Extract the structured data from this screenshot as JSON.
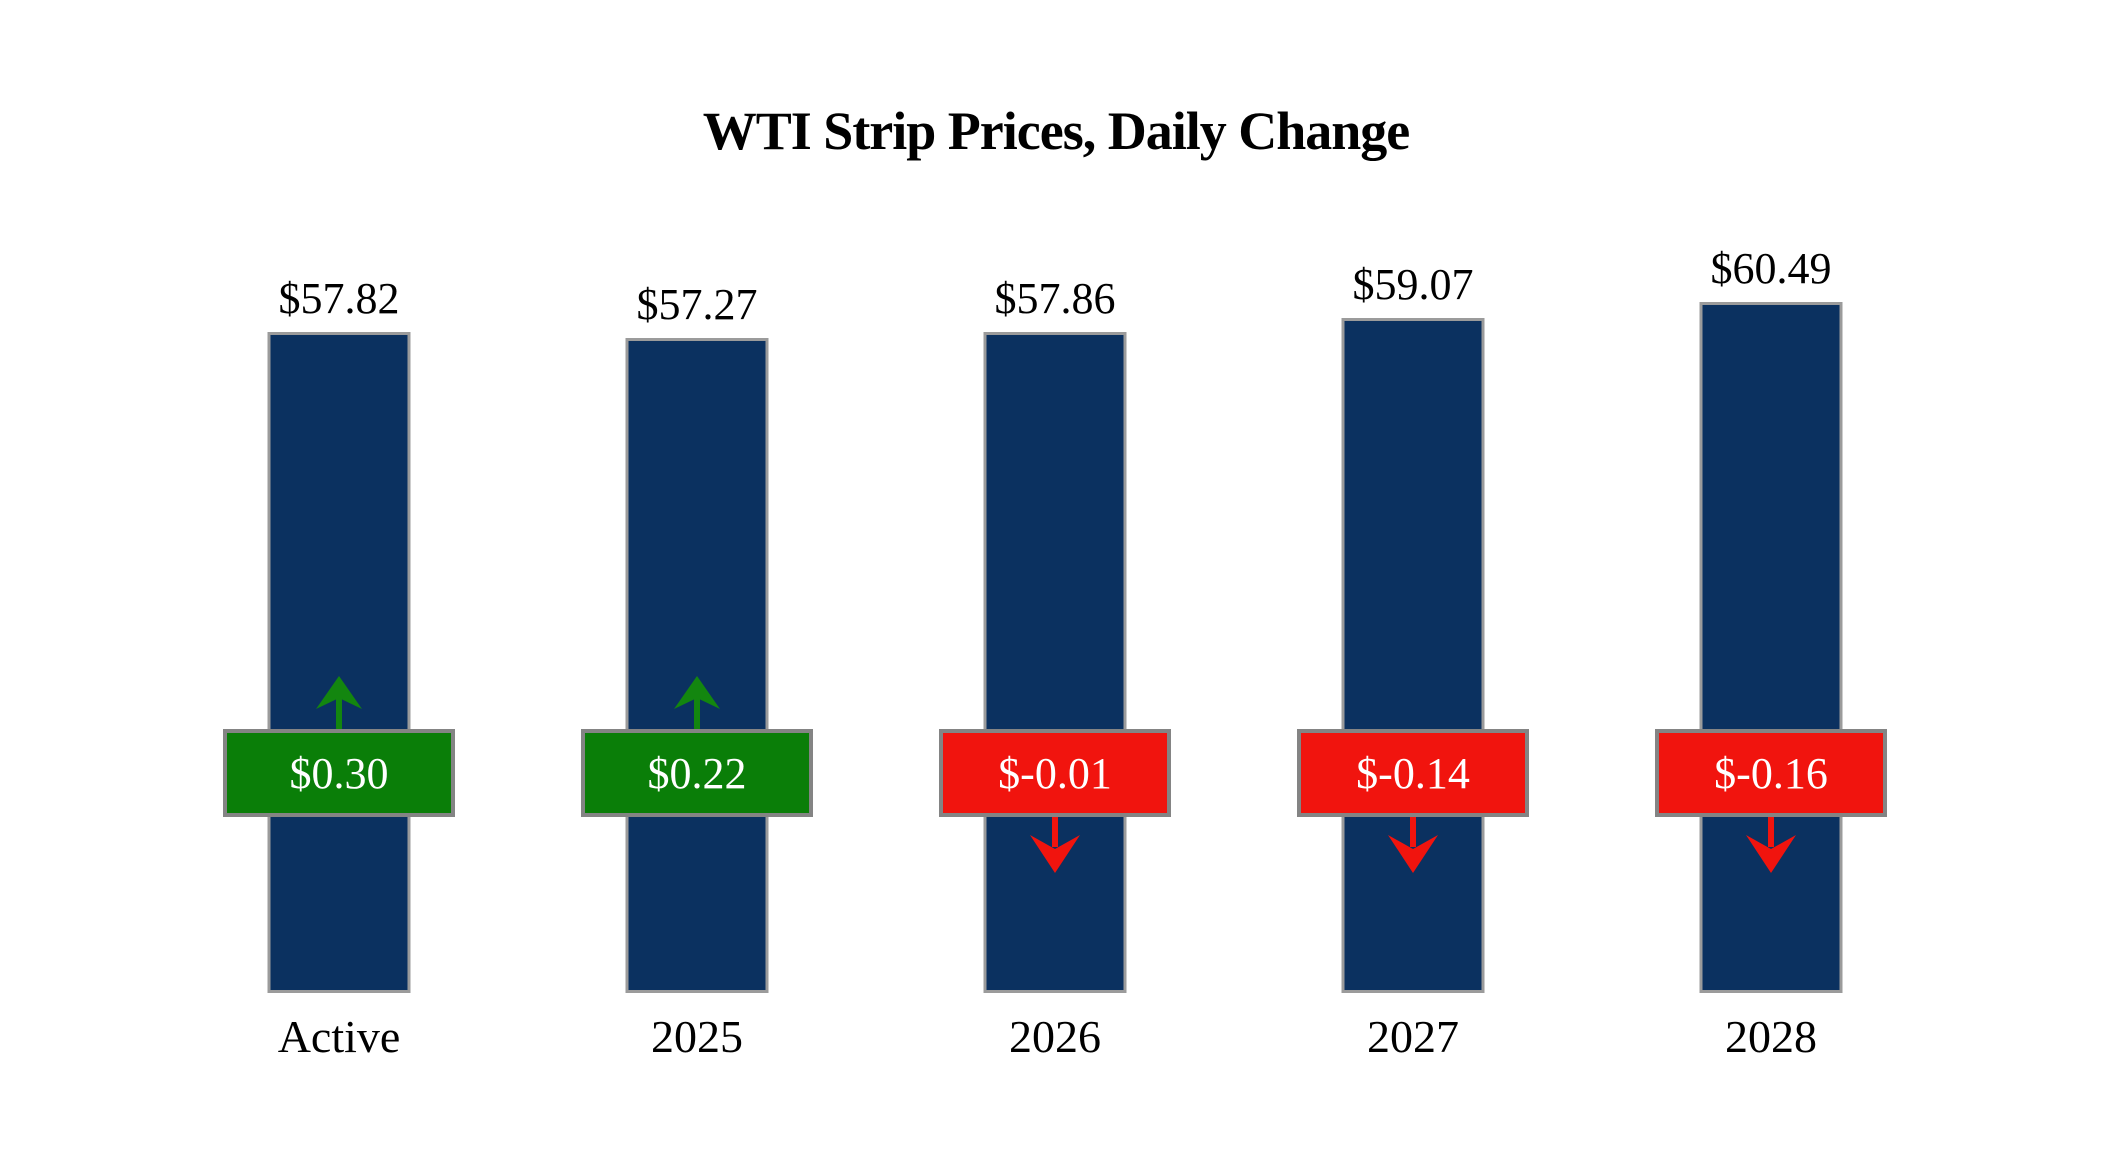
{
  "chart_data": {
    "type": "bar",
    "title": "WTI Strip Prices, Daily Change",
    "categories": [
      "Active",
      "2025",
      "2026",
      "2027",
      "2028"
    ],
    "series": [
      {
        "name": "strip_price",
        "values": [
          57.82,
          57.27,
          57.86,
          59.07,
          60.49
        ]
      },
      {
        "name": "daily_change",
        "values": [
          0.3,
          0.22,
          -0.01,
          -0.14,
          -0.16
        ]
      }
    ],
    "bars": [
      {
        "category": "Active",
        "price_label": "$57.82",
        "change_label": "$0.30",
        "direction": "up"
      },
      {
        "category": "2025",
        "price_label": "$57.27",
        "change_label": "$0.22",
        "direction": "up"
      },
      {
        "category": "2026",
        "price_label": "$57.86",
        "change_label": "$-0.01",
        "direction": "down"
      },
      {
        "category": "2027",
        "price_label": "$59.07",
        "change_label": "$-0.14",
        "direction": "down"
      },
      {
        "category": "2028",
        "price_label": "$60.49",
        "change_label": "$-0.16",
        "direction": "down"
      }
    ],
    "ylim": [
      0,
      60.49
    ],
    "grid": false,
    "legend": "none",
    "xlabel": "",
    "ylabel": ""
  },
  "colors": {
    "background": "#FFFFFF",
    "bar_fill": "#0B3160",
    "bar_border": "#9B9B9B",
    "badge_border": "#848484",
    "up_fill": "#0A7E08",
    "up_arrow": "#13860F",
    "down_fill": "#F1140E",
    "down_arrow": "#F1140E",
    "badge_text": "#FFFFFF",
    "text": "#000000"
  }
}
